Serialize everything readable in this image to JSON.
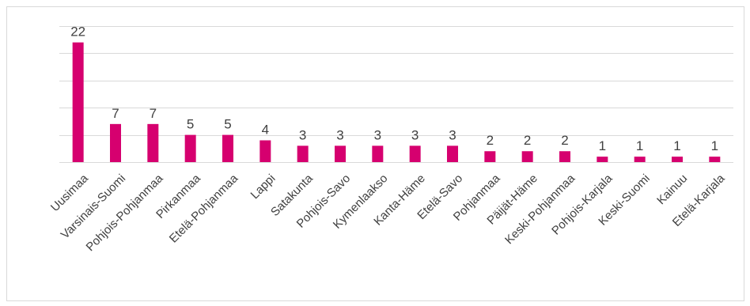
{
  "chart_data": {
    "type": "bar",
    "categories": [
      "Uusimaa",
      "Varsinais-Suomi",
      "Pohjois-Pohjanmaa",
      "Pirkanmaa",
      "Etelä-Pohjanmaa",
      "Lappi",
      "Satakunta",
      "Pohjois-Savo",
      "Kymenlaakso",
      "Kanta-Häme",
      "Etelä-Savo",
      "Pohjanmaa",
      "Päijät-Häme",
      "Keski-Pohjanmaa",
      "Pohjois-Karjala",
      "Keski-Suomi",
      "Kainuu",
      "Etelä-Karjala"
    ],
    "values": [
      22,
      7,
      7,
      5,
      5,
      4,
      3,
      3,
      3,
      3,
      3,
      2,
      2,
      2,
      1,
      1,
      1,
      1
    ],
    "ylim": [
      0,
      25
    ],
    "grid": true,
    "bar_color": "#d6006f",
    "gridline_color": "#d9d9d9",
    "title": "",
    "xlabel": "",
    "ylabel": ""
  }
}
